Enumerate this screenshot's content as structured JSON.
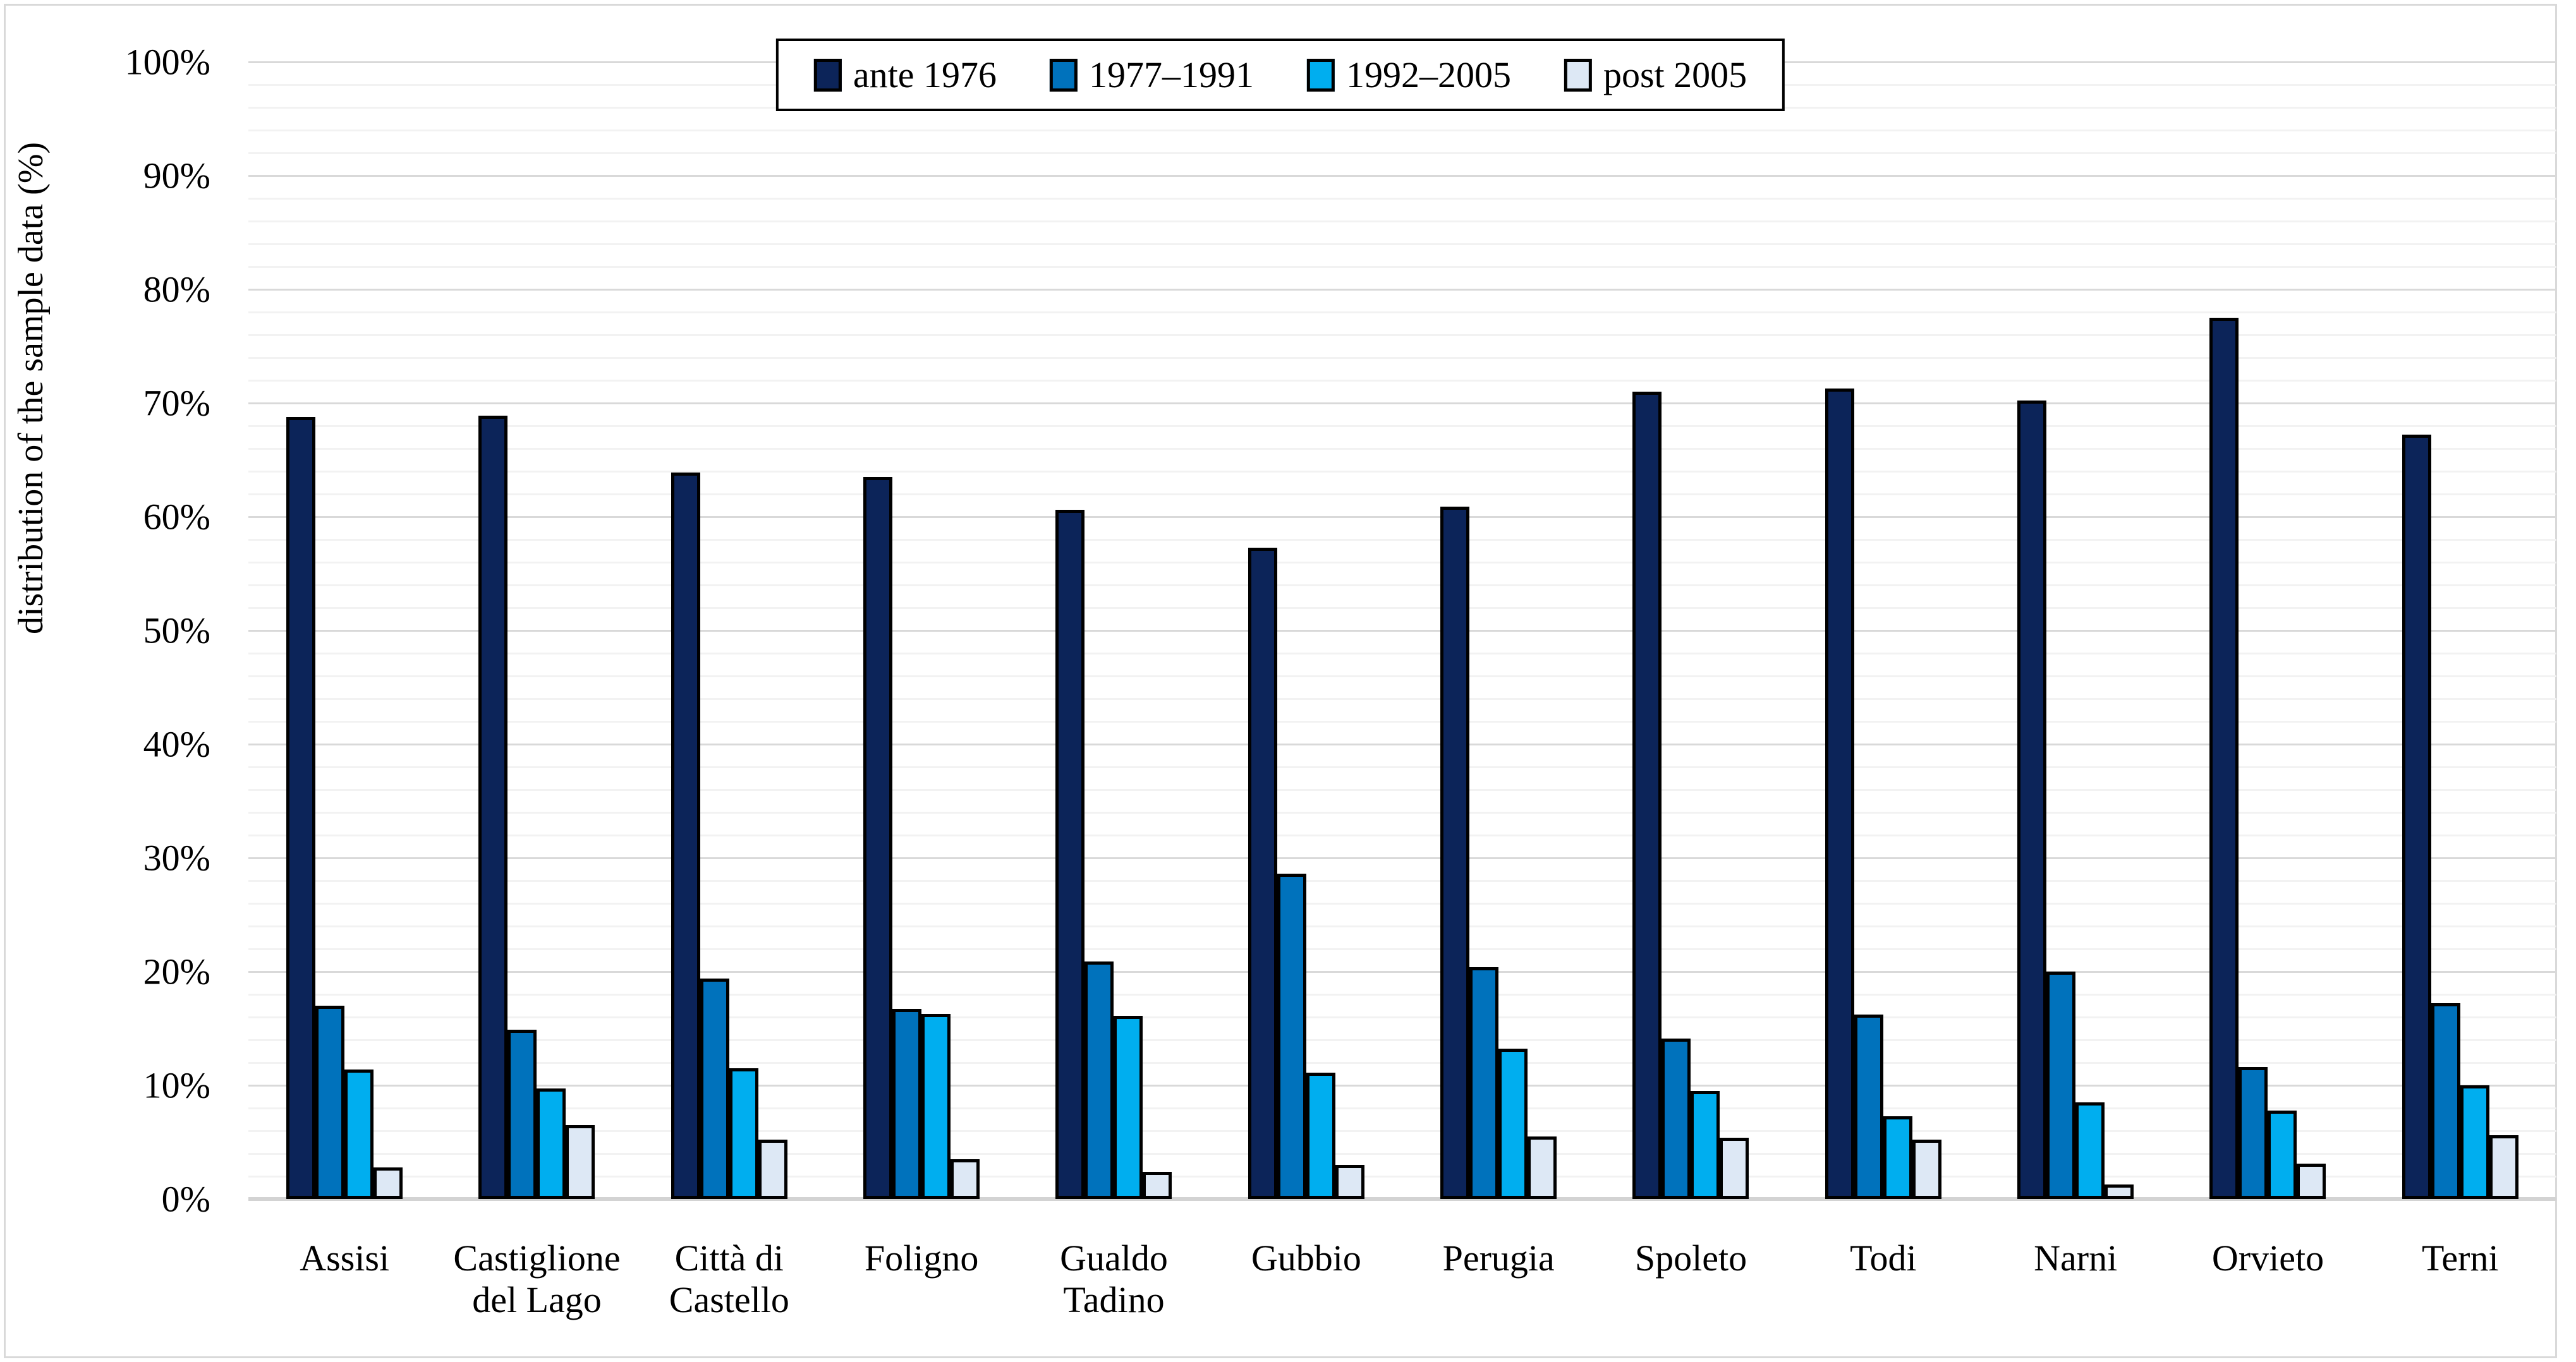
{
  "chart_data": {
    "type": "bar",
    "title": "",
    "ylabel": "distribution of the sample data (%)",
    "ylim": [
      0,
      100
    ],
    "ytick_step_major": 10,
    "ytick_minor_every": 2,
    "ytick_format": "percent",
    "grid": true,
    "legend_position": "top-center",
    "categories": [
      "Assisi",
      "Castiglione del Lago",
      "Città di Castello",
      "Foligno",
      "Gualdo Tadino",
      "Gubbio",
      "Perugia",
      "Spoleto",
      "Todi",
      "Narni",
      "Orvieto",
      "Terni"
    ],
    "series": [
      {
        "name": "ante 1976",
        "color": "#0C2459",
        "values": [
          68.8,
          68.9,
          63.9,
          63.5,
          60.6,
          57.3,
          60.9,
          71.0,
          71.3,
          70.2,
          77.5,
          67.2
        ]
      },
      {
        "name": "1977–1991",
        "color": "#0072BC",
        "values": [
          17.0,
          14.9,
          19.4,
          16.7,
          20.9,
          28.6,
          20.4,
          14.1,
          16.2,
          20.0,
          11.6,
          17.2
        ]
      },
      {
        "name": "1992–2005",
        "color": "#00AEEF",
        "values": [
          11.4,
          9.7,
          11.5,
          16.3,
          16.1,
          11.1,
          13.2,
          9.5,
          7.3,
          8.5,
          7.8,
          10.0
        ]
      },
      {
        "name": "post 2005",
        "color": "#DDE8F5",
        "values": [
          2.8,
          6.5,
          5.2,
          3.5,
          2.4,
          3.0,
          5.5,
          5.4,
          5.2,
          1.3,
          3.1,
          5.6
        ]
      }
    ],
    "colors": {
      "grid_minor": "#F2F2F2",
      "grid_major": "#D9D9D9",
      "axis_line": "#D3D3D3",
      "figure_border": "#D9D9D9",
      "bar_outline": "#000000"
    }
  }
}
